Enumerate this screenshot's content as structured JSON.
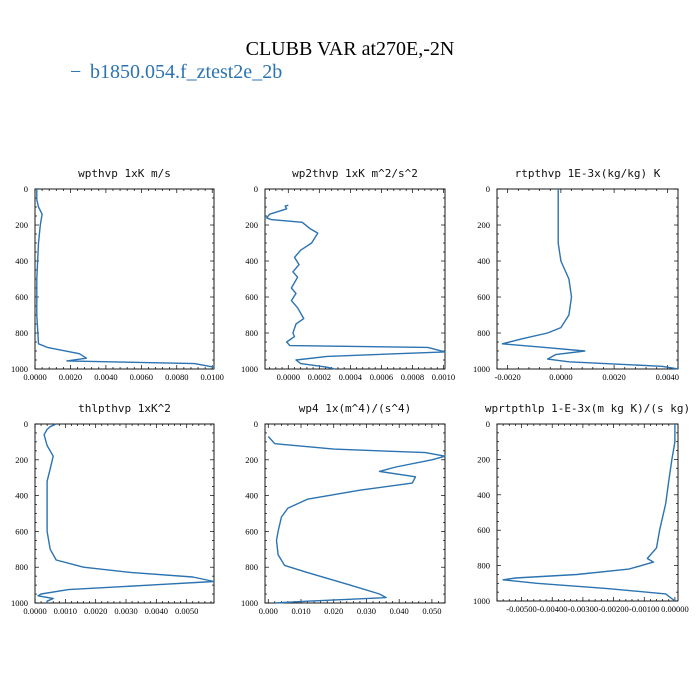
{
  "title": "CLUBB VAR at270E,-2N",
  "legend": {
    "marker": "−",
    "label": "b1850.054.f_ztest2e_2b"
  },
  "colors": {
    "series": "#2b73b1",
    "axis": "#000000"
  },
  "chart_data": [
    {
      "type": "line",
      "title": "wpthvp  1xK m/s",
      "xlim": [
        0,
        0.0101
      ],
      "ylim": [
        1000,
        0
      ],
      "xticks": [
        0,
        0.002,
        0.004,
        0.006,
        0.008,
        0.01
      ],
      "xticklabels": [
        "0.0000",
        "0.0020",
        "0.0040",
        "0.0060",
        "0.0080",
        "0.0100"
      ],
      "yticks": [
        0,
        200,
        400,
        600,
        800,
        1000
      ],
      "yticklabels": [
        "0",
        "200",
        "400",
        "600",
        "800",
        "1000"
      ],
      "series": [
        {
          "values": [
            [
              0.0001,
              0
            ],
            [
              0.0001,
              60
            ],
            [
              0.0002,
              100
            ],
            [
              0.0004,
              140
            ],
            [
              0.0003,
              200
            ],
            [
              0.0002,
              300
            ],
            [
              0.0001,
              500
            ],
            [
              0.0001,
              700
            ],
            [
              0.0002,
              860
            ],
            [
              0.0007,
              880
            ],
            [
              0.0025,
              915
            ],
            [
              0.0029,
              940
            ],
            [
              0.0018,
              955
            ],
            [
              0.009,
              970
            ],
            [
              0.0101,
              990
            ],
            [
              0.0101,
              1000
            ]
          ]
        }
      ]
    },
    {
      "type": "line",
      "title": "wp2thvp  1xK m^2/s^2",
      "xlim": [
        -0.00015,
        0.00101
      ],
      "ylim": [
        1000,
        0
      ],
      "xticks": [
        0,
        0.0002,
        0.0004,
        0.0006,
        0.0008,
        0.001
      ],
      "xticklabels": [
        "0.0000",
        "0.0002",
        "0.0004",
        "0.0006",
        "0.0008",
        "0.0010"
      ],
      "yticks": [
        0,
        200,
        400,
        600,
        800,
        1000
      ],
      "yticklabels": [
        "0",
        "200",
        "400",
        "600",
        "800",
        "1000"
      ],
      "series": [
        {
          "values": [
            [
              0,
              90
            ],
            [
              -2e-05,
              95
            ],
            [
              -1e-05,
              110
            ],
            [
              -0.00012,
              140
            ],
            [
              -0.00014,
              160
            ],
            [
              -0.00011,
              170
            ],
            [
              9e-05,
              185
            ],
            [
              0.00014,
              220
            ],
            [
              0.00019,
              245
            ],
            [
              0.00015,
              300
            ],
            [
              8e-05,
              340
            ],
            [
              4e-05,
              380
            ],
            [
              7e-05,
              420
            ],
            [
              3e-05,
              460
            ],
            [
              6e-05,
              490
            ],
            [
              2e-05,
              550
            ],
            [
              5e-05,
              580
            ],
            [
              2e-05,
              620
            ],
            [
              6e-05,
              660
            ],
            [
              0.0001,
              720
            ],
            [
              5e-05,
              750
            ],
            [
              3e-05,
              800
            ],
            [
              4e-05,
              820
            ],
            [
              -1e-05,
              850
            ],
            [
              1e-05,
              870
            ],
            [
              0.0009,
              880
            ],
            [
              0.00101,
              905
            ],
            [
              0.00025,
              930
            ],
            [
              5e-05,
              950
            ],
            [
              8e-05,
              970
            ],
            [
              0.00025,
              990
            ],
            [
              0.0003,
              1000
            ]
          ]
        }
      ]
    },
    {
      "type": "line",
      "title": "rtpthvp  1E-3x(kg/kg) K",
      "xlim": [
        -0.0024,
        0.0044
      ],
      "ylim": [
        1000,
        0
      ],
      "xticks": [
        -0.002,
        0,
        0.002,
        0.004
      ],
      "xticklabels": [
        "-0.0020",
        "0.0000",
        "0.0020",
        "0.0040"
      ],
      "yticks": [
        0,
        200,
        400,
        600,
        800,
        1000
      ],
      "yticklabels": [
        "0",
        "200",
        "400",
        "600",
        "800",
        "1000"
      ],
      "series": [
        {
          "values": [
            [
              -0.0001,
              0
            ],
            [
              -0.0001,
              300
            ],
            [
              0,
              400
            ],
            [
              0.0003,
              500
            ],
            [
              0.0004,
              600
            ],
            [
              0.0003,
              700
            ],
            [
              0,
              770
            ],
            [
              -0.0005,
              800
            ],
            [
              -0.0014,
              830
            ],
            [
              -0.0022,
              860
            ],
            [
              -0.0006,
              880
            ],
            [
              0.0009,
              900
            ],
            [
              -0.0002,
              920
            ],
            [
              -0.0005,
              945
            ],
            [
              0.0003,
              960
            ],
            [
              0.0038,
              985
            ],
            [
              0.0044,
              1000
            ]
          ]
        }
      ]
    },
    {
      "type": "line",
      "title": "thlpthvp  1xK^2",
      "xlim": [
        0,
        0.0059
      ],
      "ylim": [
        1000,
        0
      ],
      "xticks": [
        0,
        0.001,
        0.002,
        0.003,
        0.004,
        0.005
      ],
      "xticklabels": [
        "0.0000",
        "0.0010",
        "0.0020",
        "0.0030",
        "0.0040",
        "0.0050"
      ],
      "yticks": [
        0,
        200,
        400,
        600,
        800,
        1000
      ],
      "yticklabels": [
        "0",
        "200",
        "400",
        "600",
        "800",
        "1000"
      ],
      "series": [
        {
          "values": [
            [
              0.0007,
              0
            ],
            [
              0.0005,
              15
            ],
            [
              0.0004,
              30
            ],
            [
              0.0003,
              60
            ],
            [
              0.0004,
              120
            ],
            [
              0.0006,
              180
            ],
            [
              0.0005,
              250
            ],
            [
              0.0004,
              320
            ],
            [
              0.0004,
              450
            ],
            [
              0.0004,
              600
            ],
            [
              0.0005,
              700
            ],
            [
              0.0007,
              760
            ],
            [
              0.0016,
              800
            ],
            [
              0.0032,
              830
            ],
            [
              0.0052,
              855
            ],
            [
              0.0059,
              880
            ],
            [
              0.0038,
              900
            ],
            [
              0.0011,
              925
            ],
            [
              0.0002,
              950
            ],
            [
              0.0001,
              960
            ],
            [
              0.0006,
              975
            ],
            [
              0.0004,
              990
            ],
            [
              0.0004,
              1000
            ]
          ]
        }
      ]
    },
    {
      "type": "line",
      "title": "wp4  1x(m^4)/(s^4)",
      "xlim": [
        -0.001,
        0.054
      ],
      "ylim": [
        1000,
        0
      ],
      "xticks": [
        0,
        0.01,
        0.02,
        0.03,
        0.04,
        0.05
      ],
      "xticklabels": [
        "0.000",
        "0.010",
        "0.020",
        "0.030",
        "0.040",
        "0.050"
      ],
      "yticks": [
        0,
        200,
        400,
        600,
        800,
        1000
      ],
      "yticklabels": [
        "0",
        "200",
        "400",
        "600",
        "800",
        "1000"
      ],
      "series": [
        {
          "values": [
            [
              0,
              70
            ],
            [
              0.002,
              110
            ],
            [
              0.02,
              140
            ],
            [
              0.048,
              160
            ],
            [
              0.054,
              180
            ],
            [
              0.05,
              200
            ],
            [
              0.039,
              240
            ],
            [
              0.034,
              265
            ],
            [
              0.045,
              295
            ],
            [
              0.044,
              330
            ],
            [
              0.028,
              370
            ],
            [
              0.012,
              420
            ],
            [
              0.006,
              470
            ],
            [
              0.004,
              520
            ],
            [
              0.003,
              600
            ],
            [
              0.0025,
              650
            ],
            [
              0.003,
              730
            ],
            [
              0.005,
              790
            ],
            [
              0.012,
              830
            ],
            [
              0.025,
              900
            ],
            [
              0.034,
              950
            ],
            [
              0.036,
              970
            ],
            [
              0.012,
              990
            ],
            [
              0.002,
              1000
            ]
          ]
        }
      ]
    },
    {
      "type": "line",
      "title": "wprtpthlp  1-E-3x(m kg K)/(s kg)",
      "xlim": [
        -0.0058,
        0.0001
      ],
      "ylim": [
        1000,
        0
      ],
      "xticks": [
        -0.005,
        -0.004,
        -0.003,
        -0.002,
        -0.001,
        0
      ],
      "xticklabels": [
        "-0.00500",
        "-0.00400",
        "-0.00300",
        "-0.00200",
        "-0.00100",
        "0.00000"
      ],
      "yticks": [
        0,
        200,
        400,
        600,
        800,
        1000
      ],
      "yticklabels": [
        "0",
        "200",
        "400",
        "600",
        "800",
        "1000"
      ],
      "series": [
        {
          "values": [
            [
              0,
              0
            ],
            [
              0,
              100
            ],
            [
              -0.0001,
              200
            ],
            [
              -0.0002,
              320
            ],
            [
              -0.0003,
              450
            ],
            [
              -0.0005,
              600
            ],
            [
              -0.0006,
              700
            ],
            [
              -0.0009,
              760
            ],
            [
              -0.0007,
              780
            ],
            [
              -0.0015,
              820
            ],
            [
              -0.0032,
              850
            ],
            [
              -0.0052,
              870
            ],
            [
              -0.0056,
              880
            ],
            [
              -0.0045,
              900
            ],
            [
              -0.0022,
              930
            ],
            [
              -0.0003,
              960
            ],
            [
              0,
              1000
            ]
          ]
        }
      ]
    }
  ]
}
